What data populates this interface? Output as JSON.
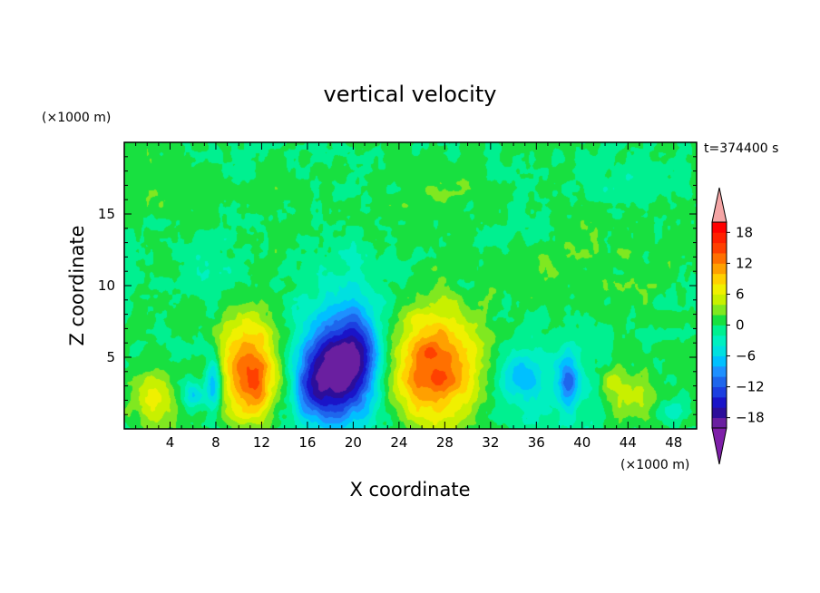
{
  "chart_data": {
    "type": "heatmap",
    "title": "vertical velocity",
    "xlabel": "X coordinate",
    "ylabel": "Z coordinate",
    "x_unit": "(×1000 m)",
    "y_unit": "(×1000 m)",
    "time_label": "t=374400 s",
    "xlim": [
      0,
      50
    ],
    "ylim": [
      0,
      20
    ],
    "x_ticks": [
      4,
      8,
      12,
      16,
      20,
      24,
      28,
      32,
      36,
      40,
      44,
      48
    ],
    "y_ticks": [
      5,
      10,
      15
    ],
    "colorbar": {
      "levels": [
        -20,
        -18,
        -16,
        -14,
        -12,
        -10,
        -8,
        -6,
        -4,
        -2,
        0,
        2,
        4,
        6,
        8,
        10,
        12,
        14,
        16,
        18,
        20
      ],
      "tick_labels": [
        18,
        12,
        6,
        0,
        -6,
        -12,
        -18
      ],
      "colors": [
        "#6a1fa0",
        "#2c0e9a",
        "#1a14c8",
        "#1c3fe0",
        "#1e66ec",
        "#1e90ff",
        "#00c0ff",
        "#00e0e0",
        "#00f0c0",
        "#00f090",
        "#18e040",
        "#80e820",
        "#c8f000",
        "#f0f000",
        "#ffd000",
        "#ffa000",
        "#ff7000",
        "#ff4000",
        "#ff2000",
        "#ff0000"
      ],
      "over_color": "#f4a5a5",
      "under_color": "#7e1fa8"
    },
    "features": [
      {
        "x": 2.5,
        "z": 2.2,
        "sx": 1.5,
        "sz": 1.5,
        "w": 6
      },
      {
        "x": 6.0,
        "z": 2.3,
        "sx": 0.7,
        "sz": 0.6,
        "w": -7
      },
      {
        "x": 7.8,
        "z": 3.0,
        "sx": 0.5,
        "sz": 1.4,
        "w": -9
      },
      {
        "x": 11.0,
        "z": 4.2,
        "sx": 1.8,
        "sz": 2.6,
        "w": 14
      },
      {
        "x": 11.5,
        "z": 2.6,
        "sx": 0.6,
        "sz": 1.0,
        "w": 4
      },
      {
        "x": 17.0,
        "z": 3.6,
        "sx": 1.4,
        "sz": 2.2,
        "w": -13
      },
      {
        "x": 20.0,
        "z": 4.8,
        "sx": 1.6,
        "sz": 2.6,
        "w": -16
      },
      {
        "x": 18.5,
        "z": 4.0,
        "sx": 3.8,
        "sz": 3.8,
        "w": -4
      },
      {
        "x": 27.0,
        "z": 4.3,
        "sx": 2.8,
        "sz": 2.8,
        "w": 15
      },
      {
        "x": 34.5,
        "z": 3.6,
        "sx": 1.3,
        "sz": 1.2,
        "w": -6
      },
      {
        "x": 38.8,
        "z": 3.3,
        "sx": 0.6,
        "sz": 1.2,
        "w": -9
      },
      {
        "x": 37.0,
        "z": 3.5,
        "sx": 3.0,
        "sz": 2.5,
        "w": -3
      },
      {
        "x": 42.5,
        "z": 3.2,
        "sx": 0.8,
        "sz": 1.0,
        "w": 3
      },
      {
        "x": 44.5,
        "z": 2.3,
        "sx": 1.4,
        "sz": 1.3,
        "w": 5
      },
      {
        "x": 47.8,
        "z": 1.3,
        "sx": 0.7,
        "sz": 0.5,
        "w": -4
      },
      {
        "x": 3.0,
        "z": 17.5,
        "sx": 3.0,
        "sz": 2.0,
        "w": 1.5
      },
      {
        "x": 13.5,
        "z": 14.0,
        "sx": 2.5,
        "sz": 3.0,
        "w": 1.2
      },
      {
        "x": 27.0,
        "z": 16.0,
        "sx": 3.5,
        "sz": 2.5,
        "w": 1.3
      },
      {
        "x": 40.0,
        "z": 11.0,
        "sx": 5.0,
        "sz": 3.0,
        "w": 1.5
      },
      {
        "x": 44.0,
        "z": 16.5,
        "sx": 2.0,
        "sz": 1.5,
        "w": -1.5
      },
      {
        "x": 19.0,
        "z": 11.5,
        "sx": 3.0,
        "sz": 1.8,
        "w": -1.2
      },
      {
        "x": 8.0,
        "z": 11.0,
        "sx": 2.0,
        "sz": 2.0,
        "w": -1.2
      },
      {
        "x": 33.5,
        "z": 14.0,
        "sx": 2.5,
        "sz": 1.5,
        "w": -1.5
      }
    ]
  }
}
